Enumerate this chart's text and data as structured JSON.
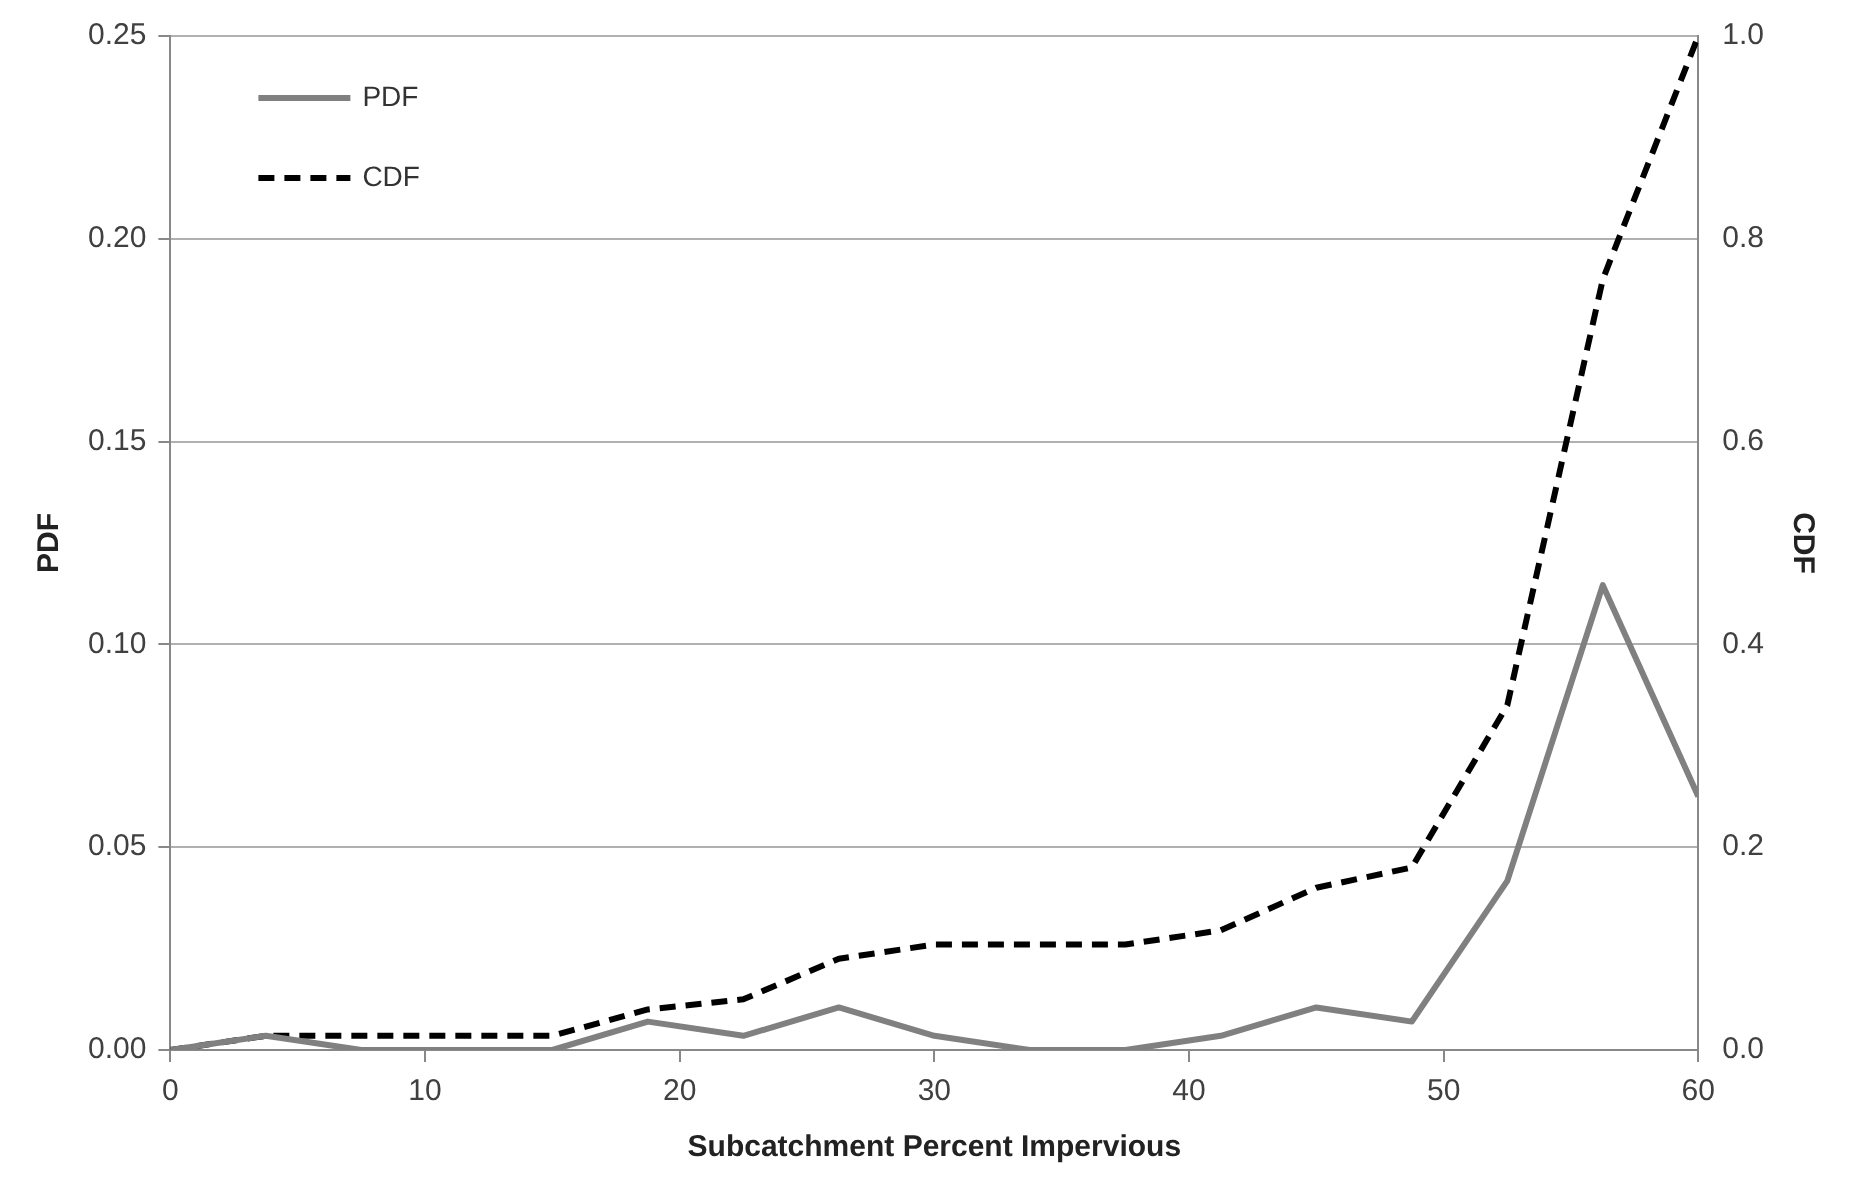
{
  "chart_data": {
    "type": "line",
    "xlabel": "Subcatchment Percent Impervious",
    "ylabel": "PDF",
    "y2label": "CDF",
    "x": [
      0,
      3.75,
      7.5,
      11.25,
      15,
      18.75,
      22.5,
      26.25,
      30,
      33.75,
      37.5,
      41.25,
      45,
      48.75,
      52.5,
      56.25,
      60
    ],
    "series": [
      {
        "name": "PDF",
        "color": "#808080",
        "line_style": "solid",
        "values": [
          0,
          0.0035,
          0,
          0,
          0,
          0.007,
          0.0035,
          0.0105,
          0.0035,
          0,
          0,
          0.0035,
          0.0105,
          0.007,
          0.0417,
          0.1146,
          0.0625
        ]
      },
      {
        "name": "CDF",
        "color": "#000000",
        "line_style": "dashed",
        "axis": "y2",
        "values": [
          0,
          0.014,
          0.014,
          0.014,
          0.014,
          0.04,
          0.05,
          0.09,
          0.104,
          0.104,
          0.104,
          0.118,
          0.16,
          0.18,
          0.34,
          0.76,
          1.0
        ]
      }
    ],
    "xlim": [
      0,
      60
    ],
    "xticks": [
      0,
      10,
      20,
      30,
      40,
      50,
      60
    ],
    "ylim": [
      0,
      0.25
    ],
    "yticks": [
      {
        "value": 0,
        "label": "0.00"
      },
      {
        "value": 0.05,
        "label": "0.05"
      },
      {
        "value": 0.1,
        "label": "0.10"
      },
      {
        "value": 0.15,
        "label": "0.15"
      },
      {
        "value": 0.2,
        "label": "0.20"
      },
      {
        "value": 0.25,
        "label": "0.25"
      }
    ],
    "y2lim": [
      0,
      1
    ],
    "y2ticks": [
      {
        "value": 0,
        "label": "0.0"
      },
      {
        "value": 0.2,
        "label": "0.2"
      },
      {
        "value": 0.4,
        "label": "0.4"
      },
      {
        "value": 0.6,
        "label": "0.6"
      },
      {
        "value": 0.8,
        "label": "0.8"
      },
      {
        "value": 1,
        "label": "1.0"
      }
    ],
    "grid": "y",
    "legend": "top left",
    "marker": "none"
  }
}
